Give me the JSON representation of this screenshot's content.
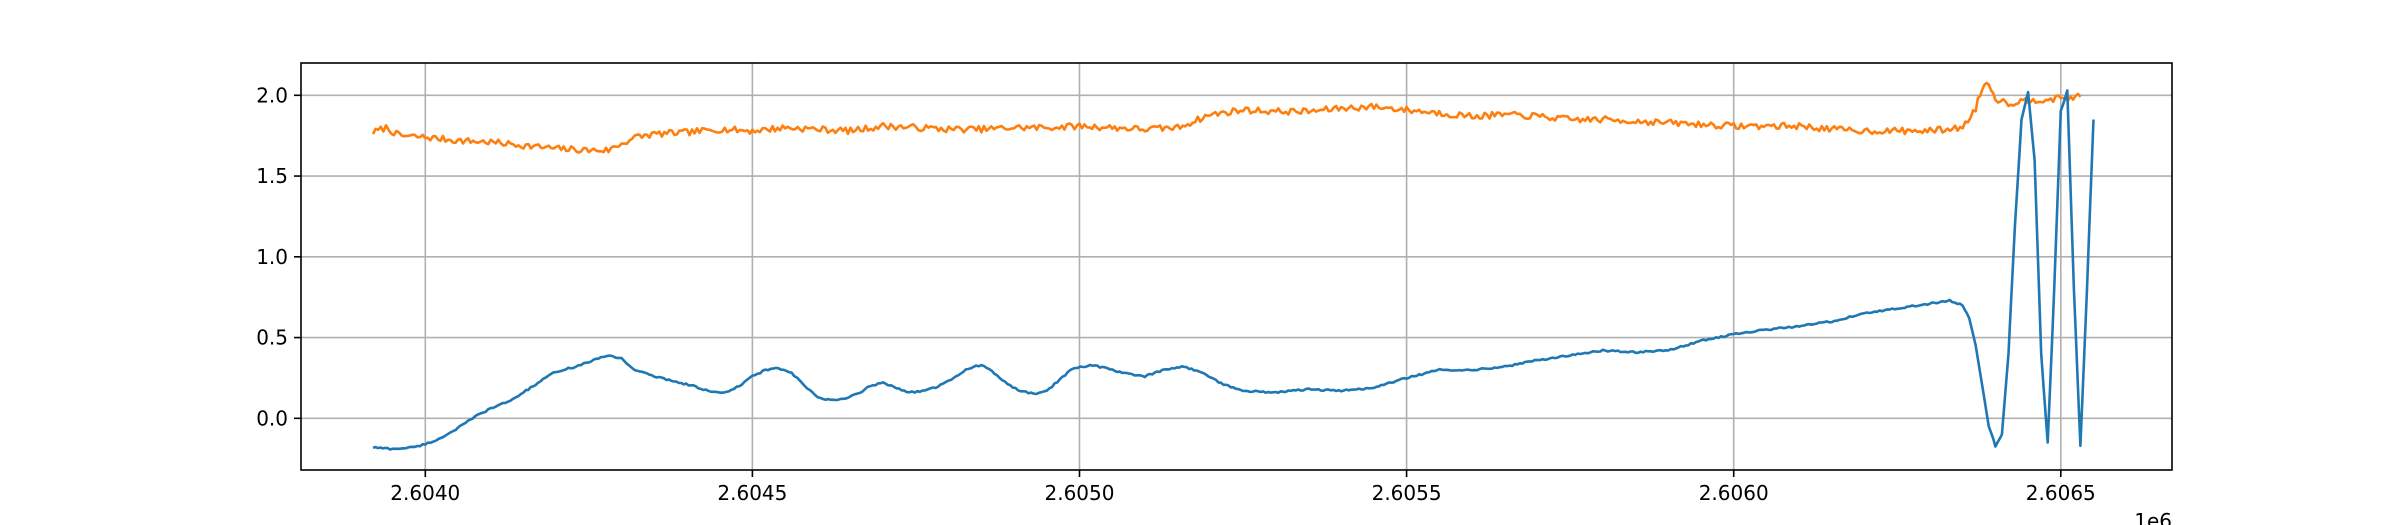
{
  "chart_data": {
    "type": "line",
    "title": "",
    "xlabel": "",
    "ylabel": "",
    "x_offset_label": "1e6",
    "xlim": [
      2.60381,
      2.60667
    ],
    "ylim": [
      -0.32,
      2.2
    ],
    "grid": true,
    "legend": "none",
    "x_ticks": [
      2.604,
      2.6045,
      2.605,
      2.6055,
      2.606,
      2.6065
    ],
    "x_tick_labels": [
      "2.6040",
      "2.6045",
      "2.6050",
      "2.6055",
      "2.6060",
      "2.6065"
    ],
    "y_ticks": [
      0.0,
      0.5,
      1.0,
      1.5,
      2.0
    ],
    "y_tick_labels": [
      "0.0",
      "0.5",
      "1.0",
      "1.5",
      "2.0"
    ],
    "series": [
      {
        "color": "#ff7f0e",
        "noise": 0.02,
        "points": [
          [
            2.60392,
            1.77
          ],
          [
            2.60394,
            1.8
          ],
          [
            2.60396,
            1.75
          ],
          [
            2.604,
            1.74
          ],
          [
            2.60405,
            1.72
          ],
          [
            2.6041,
            1.71
          ],
          [
            2.60415,
            1.69
          ],
          [
            2.6042,
            1.67
          ],
          [
            2.60425,
            1.66
          ],
          [
            2.60428,
            1.66
          ],
          [
            2.6043,
            1.7
          ],
          [
            2.60432,
            1.74
          ],
          [
            2.60435,
            1.76
          ],
          [
            2.6044,
            1.77
          ],
          [
            2.60445,
            1.79
          ],
          [
            2.6045,
            1.78
          ],
          [
            2.60455,
            1.8
          ],
          [
            2.6046,
            1.79
          ],
          [
            2.60465,
            1.78
          ],
          [
            2.6047,
            1.81
          ],
          [
            2.60475,
            1.8
          ],
          [
            2.6048,
            1.79
          ],
          [
            2.60485,
            1.79
          ],
          [
            2.6049,
            1.8
          ],
          [
            2.60495,
            1.8
          ],
          [
            2.605,
            1.81
          ],
          [
            2.60505,
            1.8
          ],
          [
            2.6051,
            1.79
          ],
          [
            2.60515,
            1.8
          ],
          [
            2.6052,
            1.88
          ],
          [
            2.60525,
            1.91
          ],
          [
            2.6053,
            1.9
          ],
          [
            2.60535,
            1.9
          ],
          [
            2.6054,
            1.92
          ],
          [
            2.60545,
            1.93
          ],
          [
            2.6055,
            1.91
          ],
          [
            2.60555,
            1.89
          ],
          [
            2.6056,
            1.87
          ],
          [
            2.60565,
            1.88
          ],
          [
            2.6057,
            1.87
          ],
          [
            2.60575,
            1.85
          ],
          [
            2.6058,
            1.85
          ],
          [
            2.60585,
            1.84
          ],
          [
            2.6059,
            1.83
          ],
          [
            2.60595,
            1.82
          ],
          [
            2.606,
            1.81
          ],
          [
            2.60605,
            1.81
          ],
          [
            2.6061,
            1.81
          ],
          [
            2.60615,
            1.79
          ],
          [
            2.6062,
            1.78
          ],
          [
            2.60625,
            1.78
          ],
          [
            2.6063,
            1.78
          ],
          [
            2.60635,
            1.8
          ],
          [
            2.60637,
            1.92
          ],
          [
            2.60638,
            2.05
          ],
          [
            2.60639,
            2.08
          ],
          [
            2.6064,
            1.98
          ],
          [
            2.60642,
            1.95
          ],
          [
            2.60645,
            1.97
          ],
          [
            2.6065,
            1.98
          ],
          [
            2.60653,
            1.99
          ]
        ]
      },
      {
        "color": "#1f77b4",
        "noise": 0.005,
        "points": [
          [
            2.60392,
            -0.18
          ],
          [
            2.60395,
            -0.19
          ],
          [
            2.60398,
            -0.18
          ],
          [
            2.604,
            -0.16
          ],
          [
            2.60402,
            -0.13
          ],
          [
            2.60405,
            -0.06
          ],
          [
            2.60408,
            0.02
          ],
          [
            2.6041,
            0.06
          ],
          [
            2.60413,
            0.11
          ],
          [
            2.60415,
            0.16
          ],
          [
            2.60418,
            0.24
          ],
          [
            2.6042,
            0.29
          ],
          [
            2.60423,
            0.32
          ],
          [
            2.60425,
            0.35
          ],
          [
            2.60428,
            0.39
          ],
          [
            2.6043,
            0.37
          ],
          [
            2.60432,
            0.3
          ],
          [
            2.60435,
            0.26
          ],
          [
            2.60438,
            0.23
          ],
          [
            2.60441,
            0.2
          ],
          [
            2.60444,
            0.16
          ],
          [
            2.60446,
            0.16
          ],
          [
            2.60448,
            0.2
          ],
          [
            2.6045,
            0.26
          ],
          [
            2.60452,
            0.3
          ],
          [
            2.60454,
            0.31
          ],
          [
            2.60456,
            0.28
          ],
          [
            2.60458,
            0.2
          ],
          [
            2.6046,
            0.13
          ],
          [
            2.60462,
            0.11
          ],
          [
            2.60464,
            0.12
          ],
          [
            2.60466,
            0.15
          ],
          [
            2.60468,
            0.2
          ],
          [
            2.6047,
            0.22
          ],
          [
            2.60472,
            0.19
          ],
          [
            2.60474,
            0.16
          ],
          [
            2.60476,
            0.17
          ],
          [
            2.60478,
            0.19
          ],
          [
            2.6048,
            0.23
          ],
          [
            2.60483,
            0.31
          ],
          [
            2.60485,
            0.33
          ],
          [
            2.60487,
            0.28
          ],
          [
            2.60489,
            0.21
          ],
          [
            2.60491,
            0.17
          ],
          [
            2.60493,
            0.15
          ],
          [
            2.60495,
            0.17
          ],
          [
            2.60497,
            0.24
          ],
          [
            2.60499,
            0.31
          ],
          [
            2.60502,
            0.33
          ],
          [
            2.60505,
            0.3
          ],
          [
            2.60508,
            0.27
          ],
          [
            2.6051,
            0.26
          ],
          [
            2.60513,
            0.3
          ],
          [
            2.60516,
            0.32
          ],
          [
            2.60519,
            0.28
          ],
          [
            2.60522,
            0.21
          ],
          [
            2.60525,
            0.17
          ],
          [
            2.6053,
            0.16
          ],
          [
            2.60535,
            0.18
          ],
          [
            2.6054,
            0.17
          ],
          [
            2.60545,
            0.19
          ],
          [
            2.6055,
            0.25
          ],
          [
            2.60555,
            0.3
          ],
          [
            2.6056,
            0.3
          ],
          [
            2.60565,
            0.32
          ],
          [
            2.6057,
            0.36
          ],
          [
            2.60575,
            0.39
          ],
          [
            2.6058,
            0.42
          ],
          [
            2.60585,
            0.41
          ],
          [
            2.6059,
            0.42
          ],
          [
            2.60595,
            0.48
          ],
          [
            2.606,
            0.52
          ],
          [
            2.60605,
            0.55
          ],
          [
            2.6061,
            0.57
          ],
          [
            2.60615,
            0.6
          ],
          [
            2.6062,
            0.65
          ],
          [
            2.60625,
            0.68
          ],
          [
            2.6063,
            0.71
          ],
          [
            2.60633,
            0.73
          ],
          [
            2.60635,
            0.7
          ],
          [
            2.60636,
            0.62
          ],
          [
            2.60637,
            0.45
          ],
          [
            2.60638,
            0.2
          ],
          [
            2.60639,
            -0.05
          ],
          [
            2.6064,
            -0.17
          ],
          [
            2.60641,
            -0.1
          ],
          [
            2.60642,
            0.4
          ],
          [
            2.60643,
            1.2
          ],
          [
            2.60644,
            1.85
          ],
          [
            2.60645,
            2.02
          ],
          [
            2.60646,
            1.6
          ],
          [
            2.60647,
            0.4
          ],
          [
            2.60648,
            -0.15
          ],
          [
            2.60649,
            0.8
          ],
          [
            2.6065,
            1.9
          ],
          [
            2.60651,
            2.03
          ],
          [
            2.60652,
            0.8
          ],
          [
            2.60653,
            -0.17
          ],
          [
            2.60654,
            0.8
          ],
          [
            2.60655,
            1.85
          ]
        ]
      }
    ]
  }
}
